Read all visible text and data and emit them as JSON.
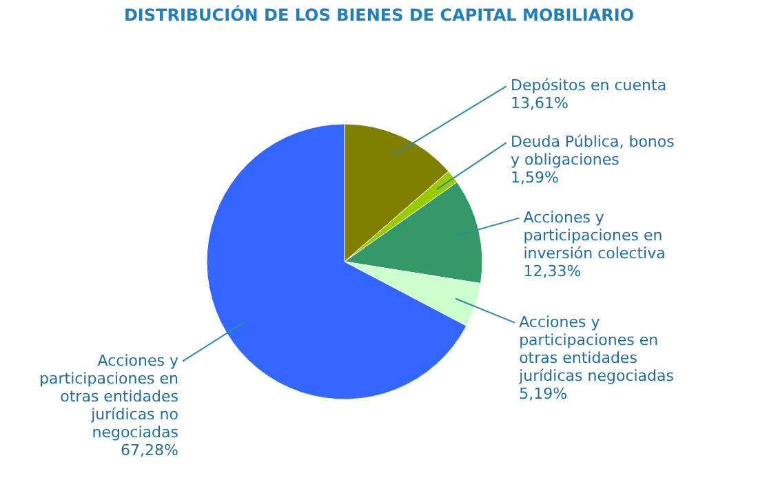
{
  "chart_data": {
    "type": "pie",
    "title": "DISTRIBUCIÓN DE LOS BIENES DE CAPITAL MOBILIARIO",
    "categories": [
      "Depósitos en cuenta",
      "Deuda Pública, bonos y obligaciones",
      "Acciones y participaciones en inversión colectiva",
      "Acciones y participaciones en otras entidades jurídicas negociadas",
      "Acciones y participaciones en otras entidades jurídicas no negociadas"
    ],
    "values": [
      13.61,
      1.59,
      12.33,
      5.19,
      67.28
    ],
    "colors": [
      "#808000",
      "#99cc00",
      "#339966",
      "#ccffcc",
      "#3366ff"
    ],
    "value_labels": [
      "13,61%",
      "1,59%",
      "12,33%",
      "5,19%",
      "67,28%"
    ]
  }
}
